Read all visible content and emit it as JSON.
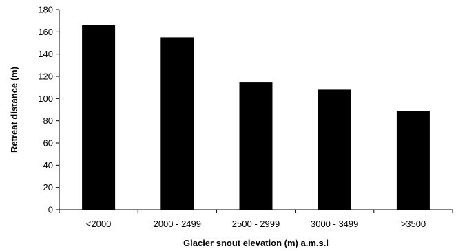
{
  "chart_data": {
    "type": "bar",
    "title": "",
    "xlabel": "Glacier snout elevation (m) a.m.s.l",
    "ylabel": "Retreat distance (m)",
    "categories": [
      "<2000",
      "2000 - 2499",
      "2500 - 2999",
      "3000 - 3499",
      ">3500"
    ],
    "values": [
      166,
      155,
      115,
      108,
      89
    ],
    "ylim": [
      0,
      180
    ],
    "yticks": [
      0,
      20,
      40,
      60,
      80,
      100,
      120,
      140,
      160,
      180
    ],
    "grid": false,
    "legend": "none",
    "bar_color": "#000000"
  }
}
